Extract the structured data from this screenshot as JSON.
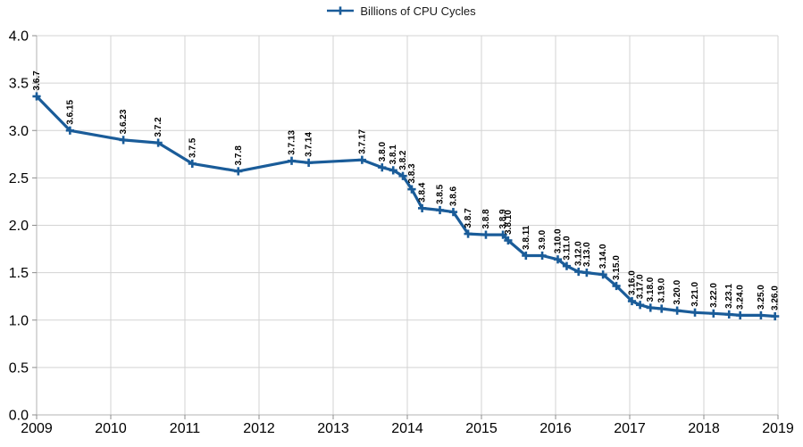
{
  "colors": {
    "series": "#1a5c99",
    "grid": "#d3d3d3",
    "axis": "#b3b3b3",
    "tick": "#8c8c8c",
    "axis_text": "#000000",
    "data_label_text": "#000000",
    "legend_text": "#1a1a1a"
  },
  "chart_data": {
    "type": "line",
    "title": "",
    "xlabel": "",
    "ylabel": "",
    "xlim": [
      2009,
      2019
    ],
    "ylim": [
      0.0,
      4.0
    ],
    "grid": true,
    "legend_position": "top-center",
    "x_ticks": [
      2009,
      2010,
      2011,
      2012,
      2013,
      2014,
      2015,
      2016,
      2017,
      2018,
      2019
    ],
    "x_tick_labels": [
      "2009",
      "2010",
      "2011",
      "2012",
      "2013",
      "2014",
      "2015",
      "2016",
      "2017",
      "2018",
      "2019"
    ],
    "y_ticks": [
      0.0,
      0.5,
      1.0,
      1.5,
      2.0,
      2.5,
      3.0,
      3.5,
      4.0
    ],
    "y_tick_labels": [
      "0.0",
      "0.5",
      "1.0",
      "1.5",
      "2.0",
      "2.5",
      "3.0",
      "3.5",
      "4.0"
    ],
    "series": [
      {
        "name": "Billions of CPU Cycles",
        "marker": "plus",
        "points": [
          {
            "label": "3.6.7",
            "x": 2009.0,
            "y": 3.36
          },
          {
            "label": "3.6.15",
            "x": 2009.45,
            "y": 3.0
          },
          {
            "label": "3.6.23",
            "x": 2010.17,
            "y": 2.9
          },
          {
            "label": "3.7.2",
            "x": 2010.64,
            "y": 2.87
          },
          {
            "label": "3.7.5",
            "x": 2011.1,
            "y": 2.65
          },
          {
            "label": "3.7.8",
            "x": 2011.72,
            "y": 2.57
          },
          {
            "label": "3.7.13",
            "x": 2012.44,
            "y": 2.68
          },
          {
            "label": "3.7.14",
            "x": 2012.67,
            "y": 2.66
          },
          {
            "label": "3.7.17",
            "x": 2013.39,
            "y": 2.69
          },
          {
            "label": "3.8.0",
            "x": 2013.66,
            "y": 2.61
          },
          {
            "label": "3.8.1",
            "x": 2013.81,
            "y": 2.58
          },
          {
            "label": "3.8.2",
            "x": 2013.94,
            "y": 2.52
          },
          {
            "label": "3.8.3",
            "x": 2014.06,
            "y": 2.38
          },
          {
            "label": "3.8.4",
            "x": 2014.2,
            "y": 2.18
          },
          {
            "label": "3.8.5",
            "x": 2014.44,
            "y": 2.16
          },
          {
            "label": "3.8.6",
            "x": 2014.62,
            "y": 2.14
          },
          {
            "label": "3.8.7",
            "x": 2014.82,
            "y": 1.91
          },
          {
            "label": "3.8.8",
            "x": 2015.06,
            "y": 1.9
          },
          {
            "label": "3.8.9",
            "x": 2015.29,
            "y": 1.9
          },
          {
            "label": "3.8.10",
            "x": 2015.36,
            "y": 1.84
          },
          {
            "label": "3.8.11",
            "x": 2015.6,
            "y": 1.68
          },
          {
            "label": "3.9.0",
            "x": 2015.82,
            "y": 1.68
          },
          {
            "label": "3.10.0",
            "x": 2016.03,
            "y": 1.64
          },
          {
            "label": "3.11.0",
            "x": 2016.15,
            "y": 1.57
          },
          {
            "label": "3.12.0",
            "x": 2016.31,
            "y": 1.51
          },
          {
            "label": "3.13.0",
            "x": 2016.42,
            "y": 1.5
          },
          {
            "label": "3.14.0",
            "x": 2016.64,
            "y": 1.48
          },
          {
            "label": "3.15.0",
            "x": 2016.82,
            "y": 1.36
          },
          {
            "label": "3.16.0",
            "x": 2017.03,
            "y": 1.2
          },
          {
            "label": "3.17.0",
            "x": 2017.14,
            "y": 1.16
          },
          {
            "label": "3.18.0",
            "x": 2017.28,
            "y": 1.13
          },
          {
            "label": "3.19.0",
            "x": 2017.43,
            "y": 1.12
          },
          {
            "label": "3.20.0",
            "x": 2017.64,
            "y": 1.1
          },
          {
            "label": "3.21.0",
            "x": 2017.88,
            "y": 1.08
          },
          {
            "label": "3.22.0",
            "x": 2018.13,
            "y": 1.07
          },
          {
            "label": "3.23.1",
            "x": 2018.34,
            "y": 1.06
          },
          {
            "label": "3.24.0",
            "x": 2018.49,
            "y": 1.05
          },
          {
            "label": "3.25.0",
            "x": 2018.77,
            "y": 1.05
          },
          {
            "label": "3.26.0",
            "x": 2018.96,
            "y": 1.04
          }
        ]
      }
    ]
  }
}
